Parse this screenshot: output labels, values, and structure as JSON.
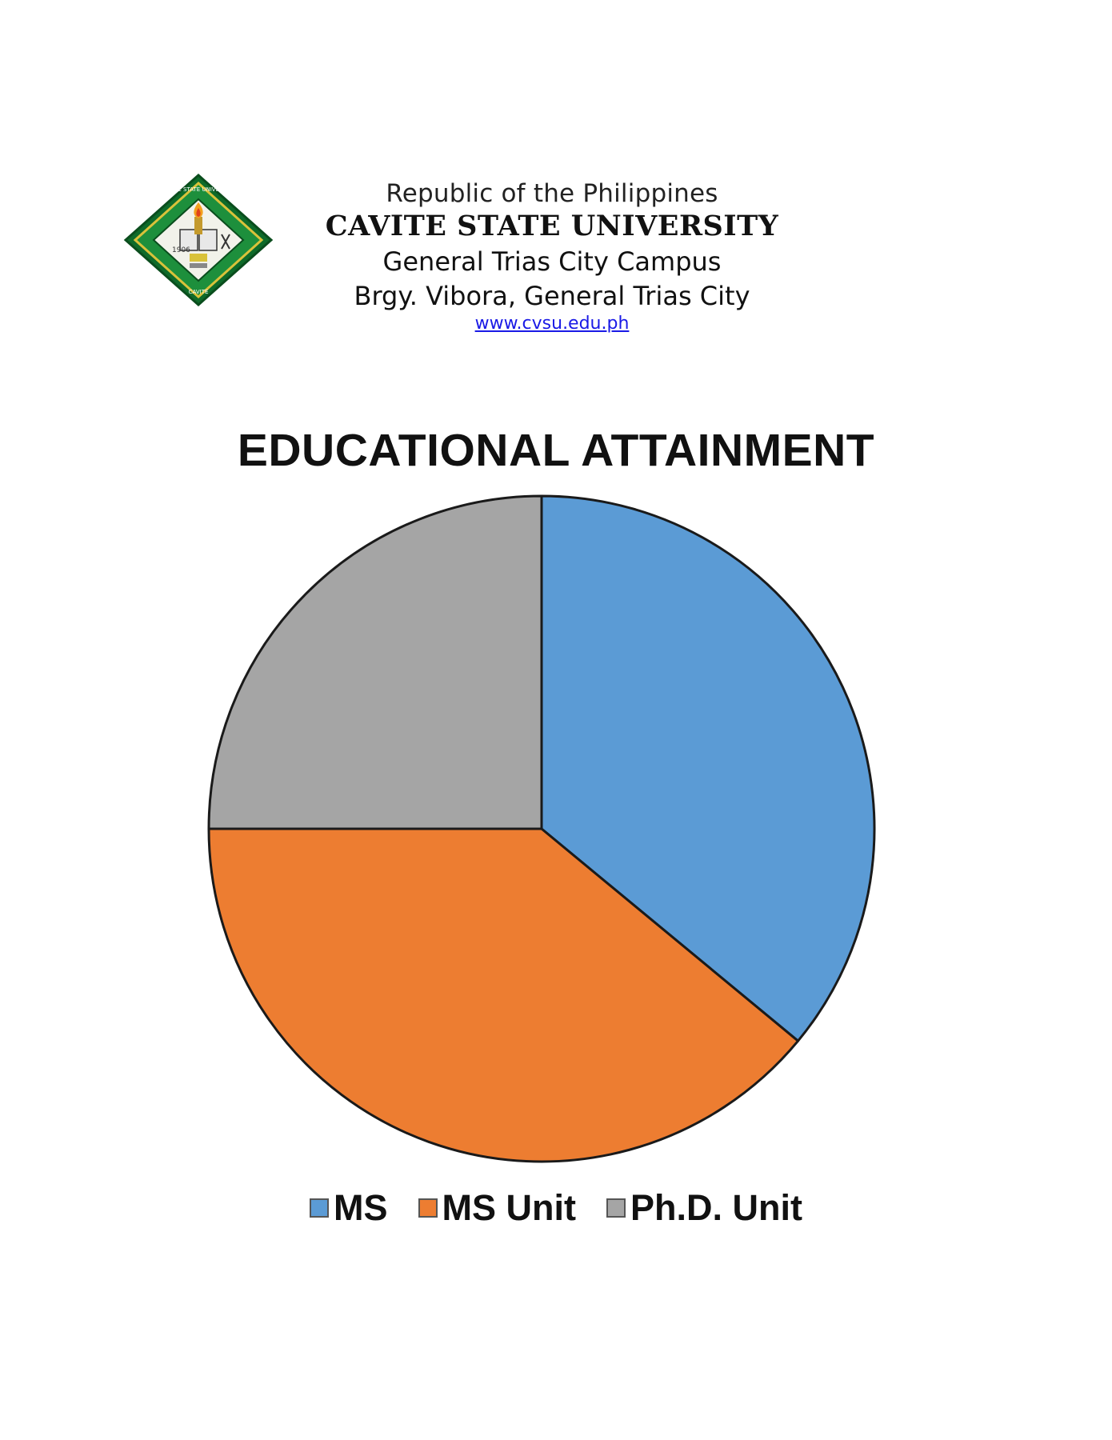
{
  "letterhead": {
    "republic": "Republic of the Philippines",
    "university": "CAVITE STATE UNIVERSITY",
    "campus": "General Trias City Campus",
    "address": "Brgy. Vibora, General Trias City",
    "website": "www.cvsu.edu.ph",
    "logo": {
      "icon": "university-seal-icon",
      "text": [
        "CAVITE STATE UNIVERSITY",
        "1906",
        "CAVITE"
      ]
    }
  },
  "chart_data": {
    "type": "pie",
    "title": "EDUCATIONAL ATTAINMENT",
    "categories": [
      "MS",
      "MS Unit",
      "Ph.D. Unit"
    ],
    "values": [
      36,
      39,
      25
    ],
    "colors": [
      "#5b9bd5",
      "#ed7d31",
      "#a5a5a5"
    ],
    "start_angle_deg": 0,
    "direction": "clockwise",
    "legend": "bottom",
    "data_labels": false
  }
}
